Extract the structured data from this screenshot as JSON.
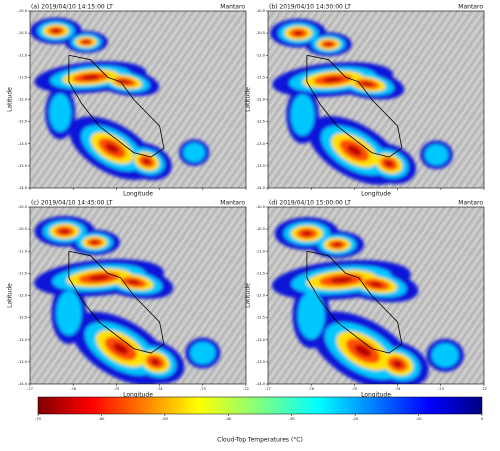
{
  "panels": [
    {
      "title": "(a) 2019/04/10 14:15:00 LT",
      "region": "Mantaro"
    },
    {
      "title": "(b) 2019/04/10 14:30:00 LT",
      "region": "Mantaro"
    },
    {
      "title": "(c) 2019/04/10 14:45:00 LT",
      "region": "Mantaro"
    },
    {
      "title": "(d) 2019/04/10 15:00:00 LT",
      "region": "Mantaro"
    }
  ],
  "axes": {
    "xlabel": "Longitude",
    "ylabel": "Latitude",
    "xlim": [
      -77,
      -72
    ],
    "ylim": [
      -14,
      -10
    ],
    "xticks": [
      -77,
      -76,
      -75,
      -74,
      -73,
      -72
    ],
    "yticks": [
      {
        "value": -10,
        "label": "-10.0"
      },
      {
        "value": -10.5,
        "label": "-10.5"
      },
      {
        "value": -11,
        "label": "-11.0"
      },
      {
        "value": -11.5,
        "label": "-11.5"
      },
      {
        "value": -12,
        "label": "-12.0"
      },
      {
        "value": -12.5,
        "label": "-12.5"
      },
      {
        "value": -13,
        "label": "-13.0"
      },
      {
        "value": -13.5,
        "label": "-13.5"
      },
      {
        "value": -14,
        "label": "-14.0"
      }
    ]
  },
  "colorbar": {
    "label": "Cloud-Top Temperatures (°C)",
    "lim": [
      -70,
      0
    ],
    "ticks": [
      -70,
      -60,
      -50,
      -40,
      -30,
      -20,
      -10,
      0
    ]
  }
}
